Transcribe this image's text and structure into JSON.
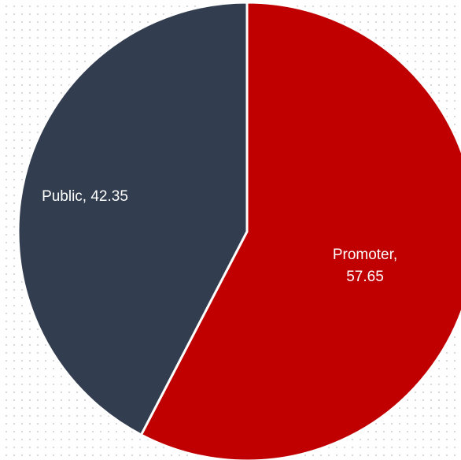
{
  "chart_data": {
    "type": "pie",
    "title": "",
    "categories": [
      "Promoter",
      "Public"
    ],
    "values": [
      57.65,
      42.35
    ],
    "colors": [
      "#c00000",
      "#323e50"
    ],
    "start_angle_deg": 0,
    "direction": "clockwise",
    "data_labels": [
      {
        "name": "Promoter",
        "value": "57.65",
        "lines": [
          "Promoter,",
          "57.65"
        ]
      },
      {
        "name": "Public",
        "value": "42.35",
        "lines": [
          "Public, 42.35"
        ]
      }
    ],
    "legend": "none"
  }
}
